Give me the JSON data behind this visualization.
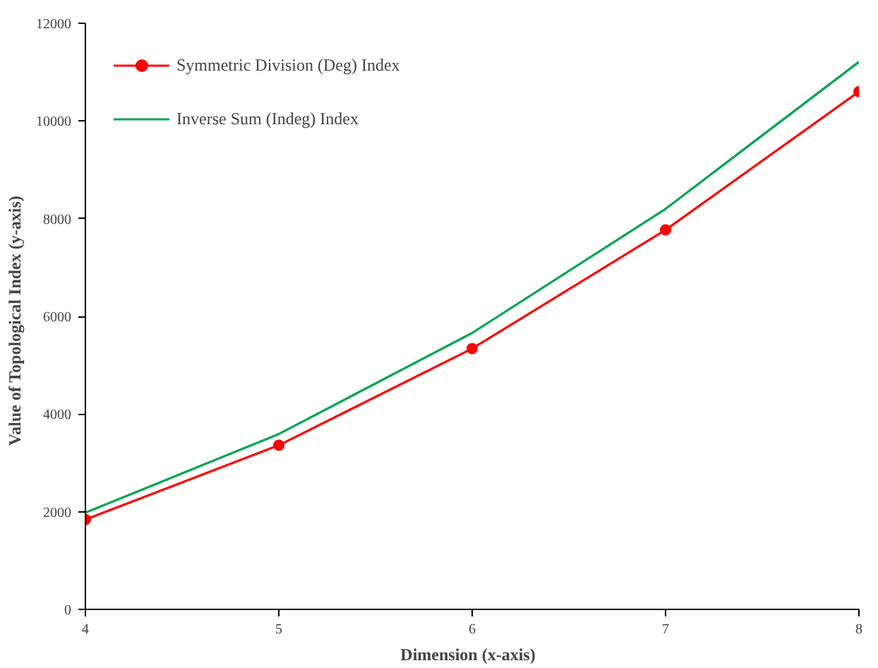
{
  "chart_data": {
    "type": "line",
    "xlabel": "Dimension   (x-axis)",
    "ylabel": "Value of Topological Index   (y-axis)",
    "x": [
      4,
      5,
      6,
      7,
      8
    ],
    "xlim": [
      4,
      8
    ],
    "xticks": [
      4,
      5,
      6,
      7,
      8
    ],
    "ylim": [
      0,
      12000
    ],
    "yticks": [
      0,
      2000,
      4000,
      6000,
      8000,
      10000,
      12000
    ],
    "grid": false,
    "legend": "top left",
    "series": [
      {
        "name": "Symmetric Division (Deg) Index",
        "color": "#ff0000",
        "marker": "circle",
        "values": [
          1840,
          3360,
          5340,
          7770,
          10600
        ]
      },
      {
        "name": "Inverse Sum (Indeg) Index",
        "color": "#00a650",
        "marker": "none",
        "values": [
          1980,
          3590,
          5660,
          8200,
          11210
        ]
      }
    ]
  }
}
